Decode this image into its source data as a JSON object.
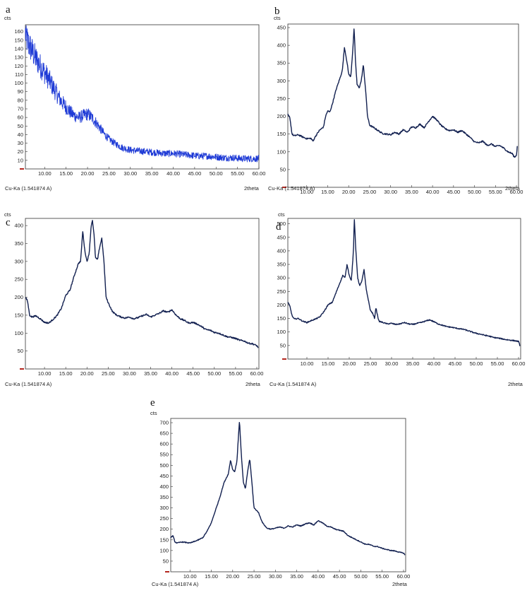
{
  "figure": {
    "panels": [
      {
        "letter": "a",
        "y_unit": "cts",
        "x_unit": "2theta",
        "source": "Cu-Ka (1.541874 A)",
        "yticks": [
          "10",
          "20",
          "30",
          "40",
          "50",
          "60",
          "70",
          "80",
          "90",
          "100",
          "110",
          "120",
          "130",
          "140",
          "150",
          "160"
        ],
        "xticks": [
          "10.00",
          "15.00",
          "20.00",
          "25.00",
          "30.00",
          "35.00",
          "40.00",
          "45.00",
          "50.00",
          "55.00",
          "60.00"
        ]
      },
      {
        "letter": "b",
        "y_unit": "cts",
        "x_unit": "2theta",
        "source": "Cu-Ka (1.541874 A)",
        "yticks": [
          "50",
          "100",
          "150",
          "200",
          "250",
          "300",
          "350",
          "400",
          "450"
        ],
        "xticks": [
          "10.00",
          "15.00",
          "20.00",
          "25.00",
          "30.00",
          "35.00",
          "40.00",
          "45.00",
          "50.00",
          "55.00",
          "60.00"
        ]
      },
      {
        "letter": "c",
        "y_unit": "cts",
        "x_unit": "2theta",
        "source": "Cu-Ka (1.541874 A)",
        "yticks": [
          "50",
          "100",
          "150",
          "200",
          "250",
          "300",
          "350",
          "400"
        ],
        "xticks": [
          "10.00",
          "15.00",
          "20.00",
          "25.00",
          "30.00",
          "35.00",
          "40.00",
          "45.00",
          "50.00",
          "55.00",
          "60.00"
        ]
      },
      {
        "letter": "d",
        "y_unit": "cts",
        "x_unit": "2theta",
        "source": "Cu-Ka (1.541874 A)",
        "yticks": [
          "50",
          "100",
          "150",
          "200",
          "250",
          "300",
          "350",
          "400",
          "450",
          "500"
        ],
        "xticks": [
          "10.00",
          "15.00",
          "20.00",
          "25.00",
          "30.00",
          "35.00",
          "40.00",
          "45.00",
          "50.00",
          "55.00",
          "60.00"
        ]
      },
      {
        "letter": "e",
        "y_unit": "cts",
        "x_unit": "2theta",
        "source": "Cu-Ka (1.541874 A)",
        "yticks": [
          "50",
          "100",
          "150",
          "200",
          "250",
          "300",
          "350",
          "400",
          "450",
          "500",
          "550",
          "600",
          "650",
          "700"
        ],
        "xticks": [
          "10.00",
          "15.00",
          "20.00",
          "25.00",
          "30.00",
          "35.00",
          "40.00",
          "45.00",
          "50.00",
          "55.00",
          "60.00"
        ]
      }
    ]
  },
  "chart_data": [
    {
      "type": "line",
      "title": "a",
      "xlabel": "2theta",
      "ylabel": "cts",
      "xlim": [
        5.5,
        60
      ],
      "ylim": [
        0,
        168
      ],
      "color": "#1f3bd6",
      "noisy": true,
      "series": [
        {
          "x": [
            5.5,
            6,
            7,
            8,
            9,
            10,
            11,
            12,
            13,
            14,
            15,
            16,
            17,
            18,
            19,
            20,
            21,
            22,
            23,
            24,
            25,
            26,
            27,
            28,
            30,
            32,
            34,
            36,
            38,
            40,
            42,
            44,
            46,
            48,
            50,
            52,
            54,
            56,
            58,
            60
          ],
          "values": [
            158,
            148,
            138,
            128,
            120,
            112,
            104,
            95,
            86,
            78,
            72,
            66,
            62,
            60,
            62,
            64,
            60,
            54,
            47,
            40,
            35,
            31,
            28,
            25,
            22,
            21,
            20,
            19,
            18,
            18,
            17,
            16,
            15,
            15,
            14,
            13,
            13,
            12,
            12,
            12
          ]
        }
      ]
    },
    {
      "type": "line",
      "title": "b",
      "xlabel": "2theta",
      "ylabel": "cts",
      "xlim": [
        5.5,
        60.5
      ],
      "ylim": [
        0,
        460
      ],
      "color": "#111f4f",
      "noisy": false,
      "series": [
        {
          "x": [
            5.5,
            6,
            6.5,
            7,
            8,
            9,
            10,
            11,
            11.5,
            12,
            13,
            14,
            14.5,
            15,
            15.5,
            16,
            17,
            18,
            18.5,
            19,
            19.5,
            20,
            20.5,
            21,
            21.3,
            21.6,
            22,
            22.5,
            23,
            23.5,
            24,
            24.5,
            25,
            26,
            27,
            28,
            29,
            30,
            31,
            32,
            33,
            34,
            35,
            36,
            37,
            38,
            39,
            40,
            41,
            42,
            43,
            44,
            45,
            46,
            47,
            48,
            49,
            50,
            51,
            52,
            53,
            54,
            55,
            56,
            57,
            58,
            59,
            59.5,
            60,
            60.2
          ],
          "values": [
            205,
            195,
            150,
            145,
            148,
            142,
            137,
            138,
            130,
            142,
            160,
            170,
            200,
            215,
            212,
            230,
            275,
            310,
            330,
            395,
            360,
            320,
            310,
            390,
            450,
            360,
            290,
            280,
            300,
            345,
            280,
            200,
            175,
            168,
            160,
            152,
            150,
            148,
            155,
            150,
            162,
            155,
            170,
            168,
            178,
            168,
            185,
            200,
            190,
            175,
            165,
            160,
            162,
            155,
            160,
            150,
            140,
            128,
            125,
            130,
            118,
            122,
            115,
            118,
            110,
            100,
            95,
            85,
            90,
            115
          ]
        }
      ]
    },
    {
      "type": "line",
      "title": "c",
      "xlabel": "2theta",
      "ylabel": "cts",
      "xlim": [
        5.5,
        60.5
      ],
      "ylim": [
        0,
        420
      ],
      "color": "#111f4f",
      "noisy": false,
      "series": [
        {
          "x": [
            5.5,
            6,
            6.5,
            7,
            8,
            9,
            10,
            11,
            12,
            13,
            14,
            15,
            16,
            17,
            18,
            18.5,
            19,
            19.5,
            20,
            20.5,
            21,
            21.3,
            21.7,
            22,
            22.5,
            23,
            23.5,
            24,
            24.5,
            25,
            26,
            27,
            28,
            29,
            30,
            31,
            32,
            33,
            34,
            35,
            36,
            37,
            38,
            39,
            40,
            41,
            42,
            43,
            44,
            45,
            46,
            47,
            48,
            49,
            50,
            51,
            52,
            53,
            54,
            55,
            56,
            57,
            58,
            59,
            60,
            60.3
          ],
          "values": [
            200,
            190,
            150,
            145,
            148,
            140,
            130,
            128,
            138,
            150,
            170,
            205,
            220,
            260,
            295,
            300,
            385,
            330,
            300,
            320,
            400,
            415,
            370,
            310,
            305,
            340,
            365,
            300,
            200,
            185,
            160,
            150,
            145,
            142,
            145,
            140,
            143,
            148,
            152,
            145,
            150,
            155,
            162,
            158,
            165,
            150,
            140,
            135,
            128,
            130,
            125,
            118,
            110,
            108,
            102,
            100,
            95,
            90,
            88,
            85,
            80,
            78,
            72,
            70,
            65,
            60
          ]
        }
      ]
    },
    {
      "type": "line",
      "title": "d",
      "xlabel": "2theta",
      "ylabel": "cts",
      "xlim": [
        5.5,
        60.5
      ],
      "ylim": [
        0,
        520
      ],
      "color": "#111f4f",
      "noisy": false,
      "series": [
        {
          "x": [
            5.5,
            6,
            6.5,
            7,
            8,
            9,
            10,
            11,
            12,
            13,
            14,
            15,
            16,
            17,
            18,
            18.5,
            19,
            19.5,
            20,
            20.5,
            21,
            21.2,
            21.5,
            22,
            22.5,
            23,
            23.5,
            24,
            25,
            25.5,
            26,
            26.3,
            27,
            28,
            29,
            30,
            31,
            32,
            33,
            34,
            35,
            36,
            37,
            38,
            39,
            40,
            41,
            42,
            43,
            44,
            45,
            46,
            47,
            48,
            49,
            50,
            51,
            52,
            53,
            54,
            55,
            56,
            57,
            58,
            59,
            60,
            60.3
          ],
          "values": [
            210,
            195,
            160,
            148,
            150,
            140,
            135,
            142,
            148,
            155,
            175,
            200,
            210,
            250,
            290,
            310,
            300,
            350,
            310,
            290,
            400,
            520,
            420,
            300,
            270,
            290,
            330,
            260,
            180,
            170,
            150,
            190,
            140,
            135,
            130,
            132,
            128,
            130,
            135,
            130,
            128,
            132,
            135,
            140,
            145,
            138,
            130,
            125,
            120,
            118,
            115,
            112,
            110,
            105,
            100,
            95,
            92,
            88,
            85,
            80,
            78,
            75,
            72,
            70,
            68,
            65,
            50
          ]
        }
      ]
    },
    {
      "type": "line",
      "title": "e",
      "xlabel": "2theta",
      "ylabel": "cts",
      "xlim": [
        5.5,
        60.5
      ],
      "ylim": [
        0,
        720
      ],
      "color": "#111f4f",
      "noisy": false,
      "series": [
        {
          "x": [
            5.5,
            6,
            6.5,
            7,
            8,
            9,
            10,
            11,
            12,
            13,
            14,
            15,
            16,
            17,
            18,
            19,
            19.5,
            20,
            20.5,
            21,
            21.3,
            21.6,
            22,
            22.5,
            23,
            23.5,
            24,
            24.5,
            25,
            26,
            27,
            28,
            29,
            30,
            31,
            32,
            33,
            34,
            35,
            36,
            37,
            38,
            39,
            40,
            41,
            42,
            43,
            44,
            45,
            46,
            47,
            48,
            49,
            50,
            51,
            52,
            53,
            54,
            55,
            56,
            57,
            58,
            59,
            60,
            60.3
          ],
          "values": [
            160,
            170,
            140,
            135,
            140,
            138,
            135,
            142,
            150,
            160,
            190,
            230,
            290,
            350,
            420,
            460,
            525,
            480,
            470,
            520,
            620,
            710,
            560,
            420,
            390,
            470,
            530,
            420,
            300,
            280,
            230,
            205,
            200,
            205,
            210,
            205,
            215,
            210,
            220,
            215,
            225,
            230,
            220,
            240,
            230,
            215,
            210,
            200,
            195,
            190,
            170,
            160,
            150,
            140,
            130,
            128,
            120,
            118,
            110,
            105,
            100,
            98,
            92,
            88,
            80
          ]
        }
      ]
    }
  ]
}
